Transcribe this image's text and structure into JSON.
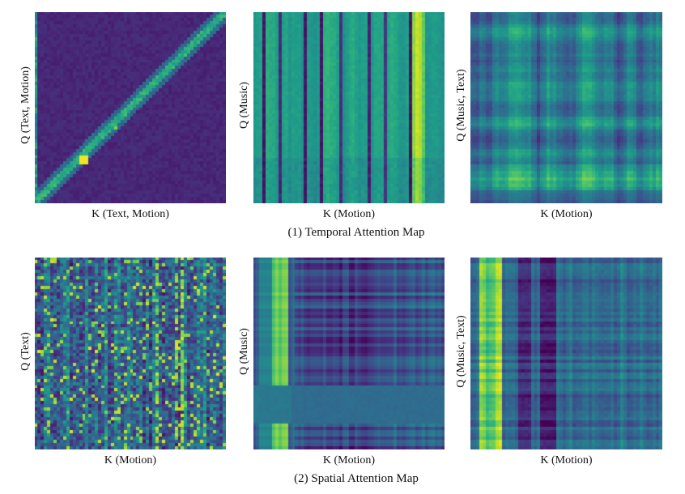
{
  "captions": {
    "temporal": "(1) Temporal Attention Map",
    "spatial": "(2) Spatial Attention Map"
  },
  "colormap": "viridis",
  "colormap_stops": [
    "#440154",
    "#482878",
    "#3e4989",
    "#31688e",
    "#26828e",
    "#1f9e89",
    "#35b779",
    "#6ece58",
    "#b5de2b",
    "#fde725"
  ],
  "chart_data": [
    {
      "type": "heatmap",
      "group": "temporal",
      "xlabel": "K (Text, Motion)",
      "ylabel": "Q (Text, Motion)",
      "pattern": "strong diagonal band on dark background",
      "grid": false
    },
    {
      "type": "heatmap",
      "group": "temporal",
      "xlabel": "K (Motion)",
      "ylabel": "Q (Music)",
      "pattern": "vertical stripes, bright band near right",
      "grid": false
    },
    {
      "type": "heatmap",
      "group": "temporal",
      "xlabel": "K (Motion)",
      "ylabel": "Q (Music, Text)",
      "pattern": "plaid of horizontal and vertical bands",
      "grid": false
    },
    {
      "type": "heatmap",
      "group": "spatial",
      "xlabel": "K (Motion)",
      "ylabel": "Q (Text)",
      "pattern": "noisy short vertical streaks",
      "grid": false
    },
    {
      "type": "heatmap",
      "group": "spatial",
      "xlabel": "K (Motion)",
      "ylabel": "Q (Music)",
      "pattern": "bright column at left, uniform lower block",
      "grid": false
    },
    {
      "type": "heatmap",
      "group": "spatial",
      "xlabel": "K (Motion)",
      "ylabel": "Q (Music, Text)",
      "pattern": "bright columns at left, dark columns in middle",
      "grid": false
    }
  ]
}
